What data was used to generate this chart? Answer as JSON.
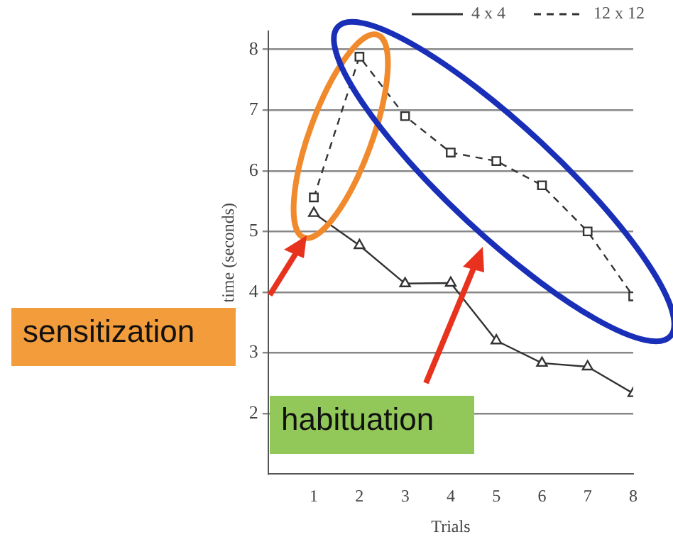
{
  "chart_data": {
    "type": "line",
    "xlabel": "Trials",
    "ylabel": "time (seconds)",
    "x": [
      1,
      2,
      3,
      4,
      5,
      6,
      7,
      8
    ],
    "xlim": [
      0,
      8
    ],
    "xticks": [
      1,
      2,
      3,
      4,
      5,
      6,
      7,
      8
    ],
    "ylim": [
      1,
      8.3
    ],
    "yticks": [
      2,
      3,
      4,
      5,
      6,
      7,
      8
    ],
    "series": [
      {
        "name": "4 x 4",
        "color": "#333333",
        "line_style": "solid",
        "marker": "triangle",
        "values": [
          5.3,
          4.77,
          4.14,
          4.15,
          3.2,
          2.83,
          2.77,
          2.33
        ]
      },
      {
        "name": "12 x 12",
        "color": "#333333",
        "line_style": "dashed",
        "marker": "square",
        "values": [
          5.56,
          7.88,
          6.9,
          6.3,
          6.16,
          5.76,
          5.0,
          3.93
        ]
      }
    ],
    "grid": "y",
    "legend": "top right",
    "annotations": [
      "sensitization",
      "habituation"
    ]
  }
}
